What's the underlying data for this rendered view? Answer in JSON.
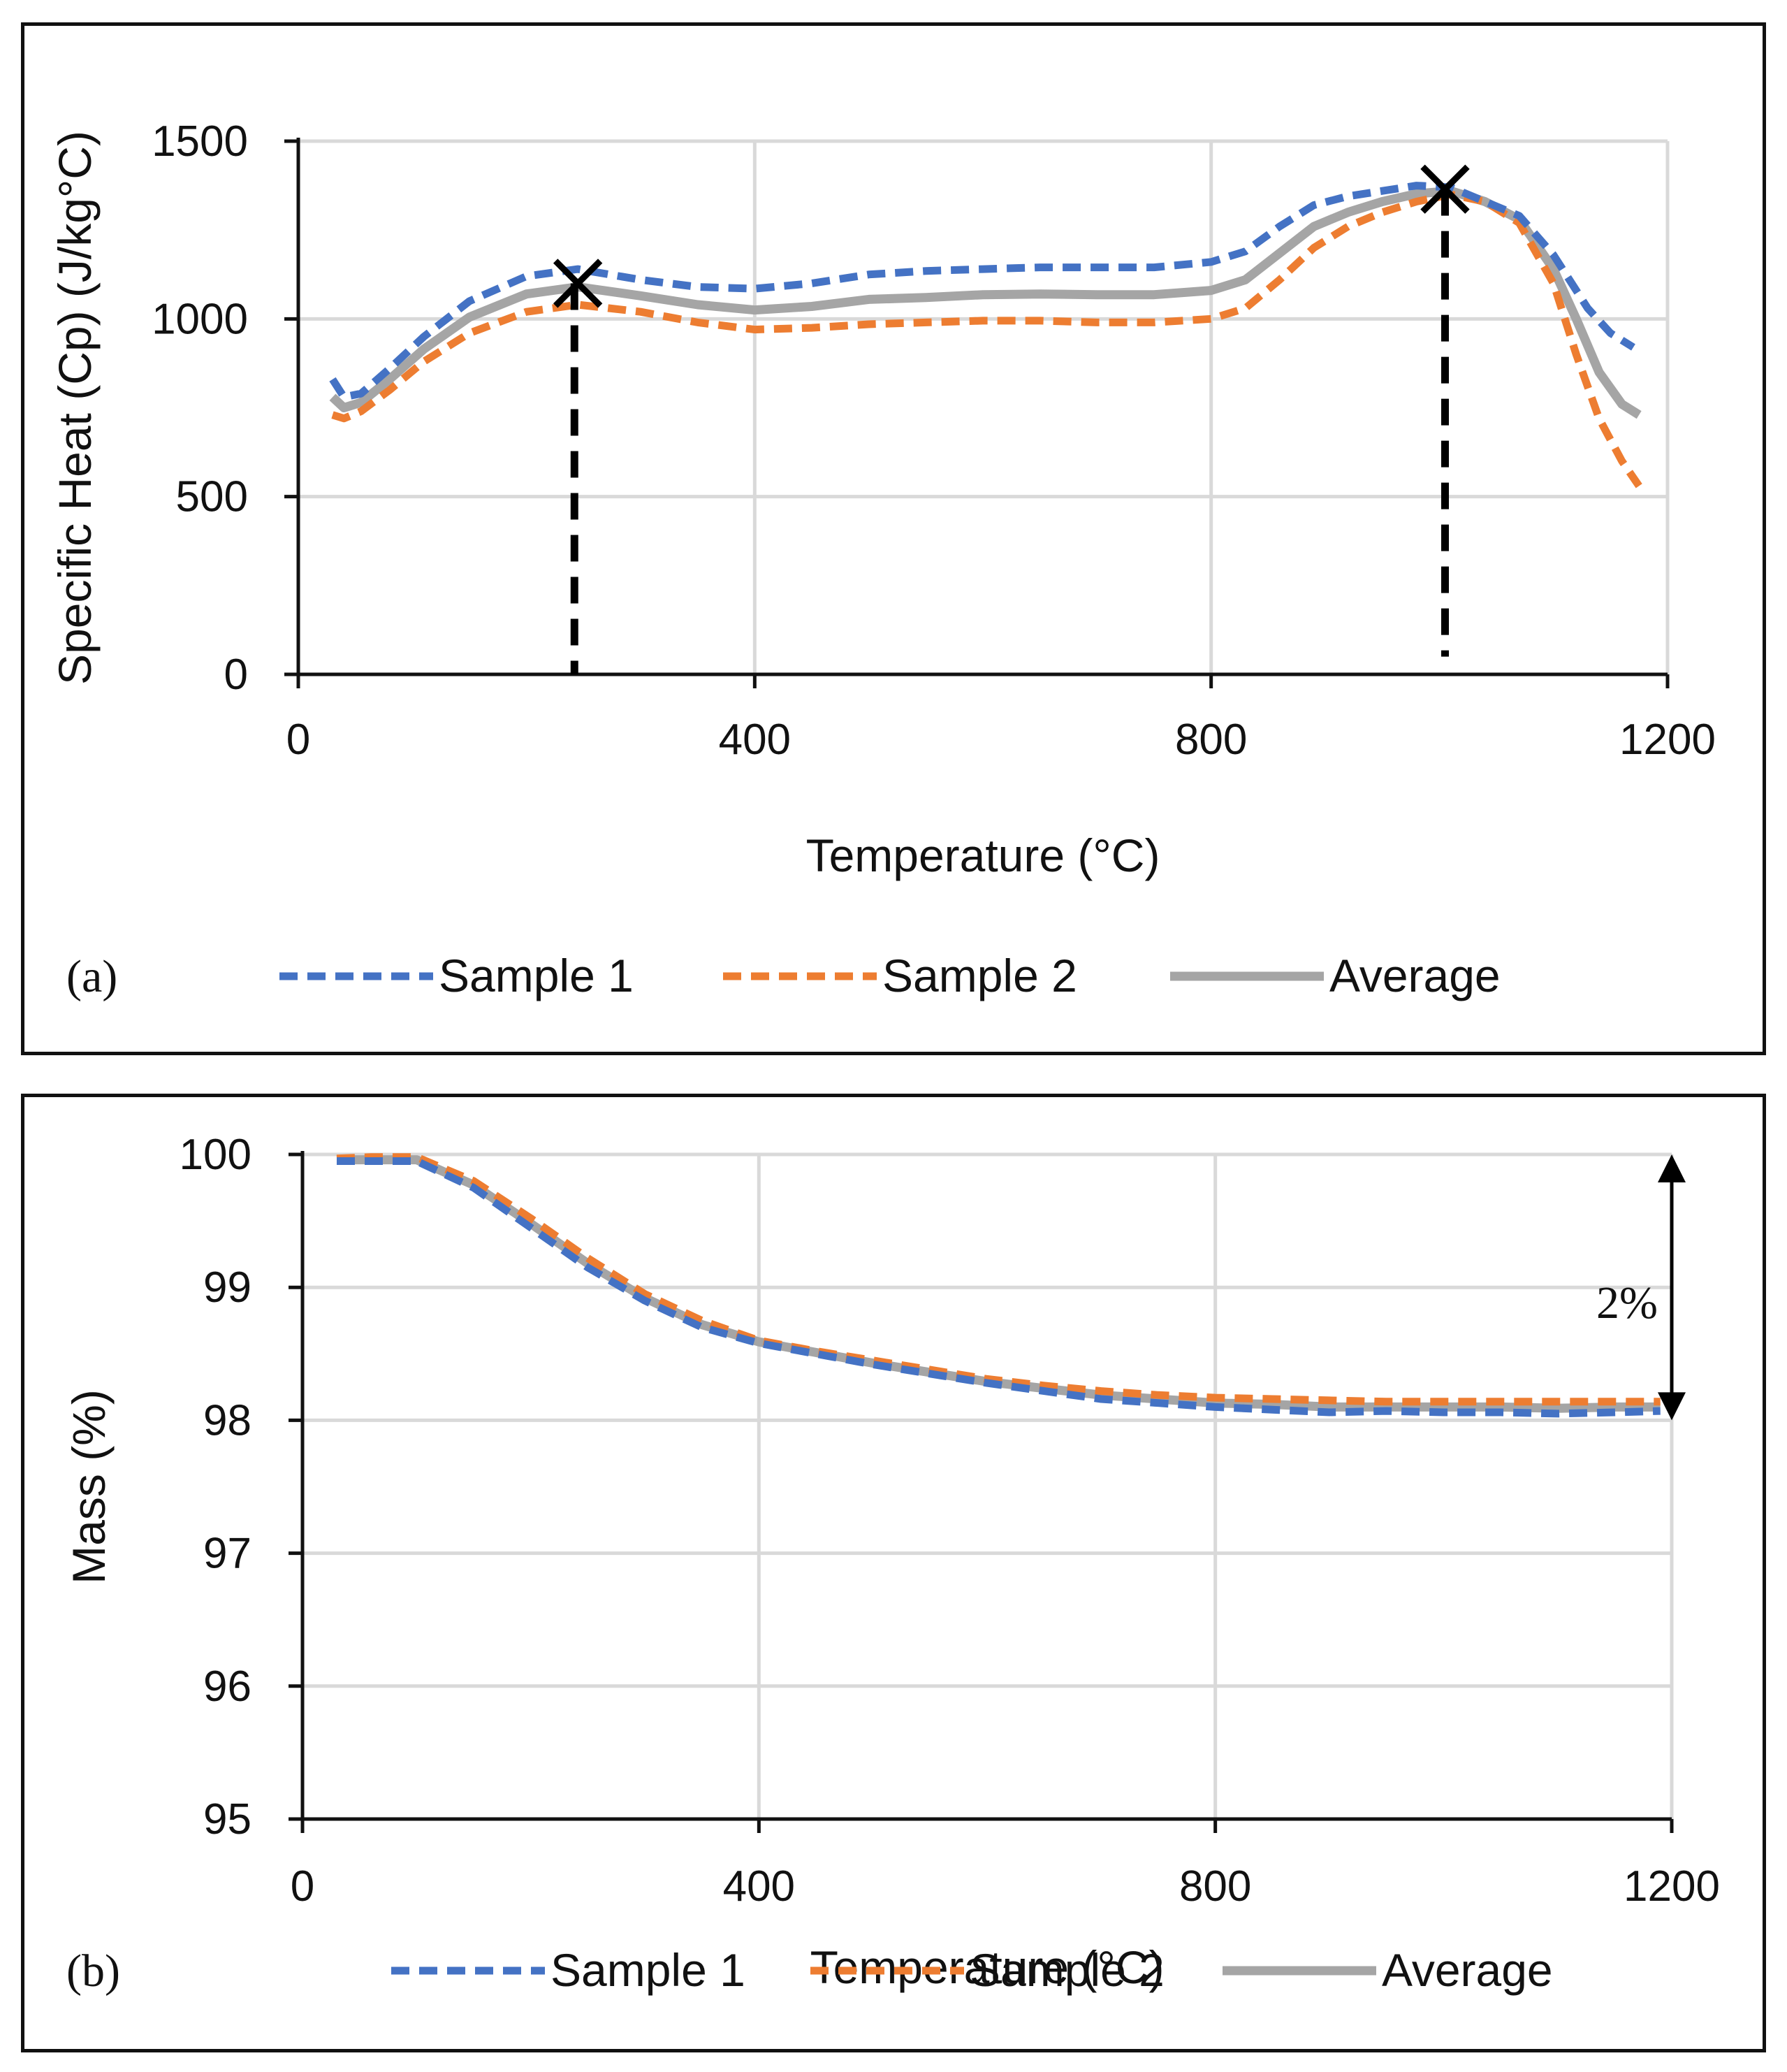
{
  "chart_data": [
    {
      "type": "line",
      "panel_label": "(a)",
      "xlabel": "Temperature (°C)",
      "ylabel": "Specific Heat (Cp) (J/kg°C)",
      "xlim": [
        0,
        1200
      ],
      "ylim": [
        0,
        1500
      ],
      "xticks": [
        0,
        400,
        800,
        1200
      ],
      "yticks": [
        0,
        500,
        1000,
        1500
      ],
      "grid": true,
      "legend_position": "bottom",
      "colors": {
        "sample1": "#4472c4",
        "sample2": "#ed7d31",
        "average": "#a5a5a5",
        "marker": "#000000"
      },
      "series": [
        {
          "name": "Sample 1",
          "style": "dashed",
          "color": "#4472c4",
          "x": [
            30,
            40,
            55,
            80,
            110,
            150,
            200,
            245,
            300,
            350,
            400,
            450,
            500,
            550,
            600,
            650,
            700,
            750,
            800,
            830,
            860,
            890,
            920,
            950,
            980,
            1010,
            1040,
            1070,
            1100,
            1130,
            1150,
            1170
          ],
          "y": [
            830,
            780,
            790,
            860,
            950,
            1050,
            1120,
            1140,
            1110,
            1090,
            1085,
            1100,
            1125,
            1135,
            1140,
            1145,
            1145,
            1145,
            1160,
            1190,
            1260,
            1320,
            1345,
            1360,
            1375,
            1370,
            1330,
            1290,
            1180,
            1030,
            960,
            920
          ]
        },
        {
          "name": "Sample 2",
          "style": "dashed",
          "color": "#ed7d31",
          "x": [
            30,
            40,
            55,
            80,
            110,
            150,
            200,
            245,
            300,
            350,
            400,
            450,
            500,
            550,
            600,
            650,
            700,
            750,
            800,
            830,
            860,
            890,
            920,
            950,
            980,
            1010,
            1040,
            1070,
            1100,
            1120,
            1140,
            1160,
            1175
          ],
          "y": [
            730,
            720,
            740,
            800,
            880,
            960,
            1020,
            1040,
            1020,
            990,
            970,
            975,
            985,
            990,
            995,
            995,
            990,
            990,
            1000,
            1030,
            1110,
            1200,
            1260,
            1300,
            1330,
            1350,
            1330,
            1270,
            1100,
            900,
            720,
            600,
            530
          ]
        },
        {
          "name": "Average",
          "style": "solid",
          "color": "#a5a5a5",
          "x": [
            30,
            40,
            55,
            80,
            110,
            150,
            200,
            245,
            300,
            350,
            400,
            450,
            500,
            550,
            600,
            650,
            700,
            750,
            800,
            830,
            860,
            890,
            920,
            950,
            980,
            1010,
            1040,
            1070,
            1100,
            1120,
            1140,
            1160,
            1175
          ],
          "y": [
            780,
            750,
            765,
            830,
            915,
            1005,
            1070,
            1090,
            1065,
            1040,
            1025,
            1035,
            1055,
            1060,
            1068,
            1070,
            1068,
            1068,
            1080,
            1110,
            1185,
            1260,
            1300,
            1330,
            1352,
            1360,
            1330,
            1280,
            1140,
            1000,
            850,
            760,
            730
          ]
        }
      ],
      "annotations": [
        {
          "type": "x-marker",
          "x": 245,
          "y": 1100
        },
        {
          "type": "x-marker",
          "x": 1005,
          "y": 1365
        },
        {
          "type": "vertical-dashed",
          "x": 242,
          "from": 0,
          "to": 1100
        },
        {
          "type": "vertical-dashed",
          "x": 1005,
          "from": 50,
          "to": 1365
        }
      ]
    },
    {
      "type": "line",
      "panel_label": "(b)",
      "xlabel": "Temperature (°C)",
      "ylabel": "Mass (%)",
      "xlim": [
        0,
        1200
      ],
      "ylim": [
        95,
        100
      ],
      "xticks": [
        0,
        400,
        800,
        1200
      ],
      "yticks": [
        95,
        96,
        97,
        98,
        99,
        100
      ],
      "grid": true,
      "legend_position": "bottom",
      "colors": {
        "sample1": "#4472c4",
        "sample2": "#ed7d31",
        "average": "#a5a5a5",
        "marker": "#000000"
      },
      "series": [
        {
          "name": "Sample 1",
          "style": "dashed",
          "color": "#4472c4",
          "x": [
            30,
            60,
            100,
            150,
            200,
            250,
            300,
            350,
            400,
            450,
            500,
            550,
            600,
            650,
            700,
            750,
            800,
            850,
            900,
            950,
            1000,
            1050,
            1100,
            1150,
            1190
          ],
          "y": [
            99.95,
            99.95,
            99.95,
            99.75,
            99.45,
            99.15,
            98.9,
            98.7,
            98.58,
            98.5,
            98.42,
            98.35,
            98.28,
            98.22,
            98.16,
            98.13,
            98.1,
            98.08,
            98.06,
            98.07,
            98.06,
            98.06,
            98.05,
            98.06,
            98.07
          ]
        },
        {
          "name": "Sample 2",
          "style": "dashed",
          "color": "#ed7d31",
          "x": [
            30,
            60,
            100,
            150,
            200,
            250,
            300,
            350,
            400,
            450,
            500,
            550,
            600,
            650,
            700,
            750,
            800,
            850,
            900,
            950,
            1000,
            1050,
            1100,
            1150,
            1190
          ],
          "y": [
            99.97,
            99.98,
            99.98,
            99.8,
            99.52,
            99.22,
            98.95,
            98.75,
            98.6,
            98.52,
            98.45,
            98.38,
            98.31,
            98.26,
            98.22,
            98.19,
            98.17,
            98.16,
            98.15,
            98.14,
            98.14,
            98.14,
            98.14,
            98.14,
            98.14
          ]
        },
        {
          "name": "Average",
          "style": "solid",
          "color": "#a5a5a5",
          "x": [
            30,
            60,
            100,
            150,
            200,
            250,
            300,
            350,
            400,
            450,
            500,
            550,
            600,
            650,
            700,
            750,
            800,
            850,
            900,
            950,
            1000,
            1050,
            1100,
            1150,
            1190
          ],
          "y": [
            99.96,
            99.96,
            99.96,
            99.77,
            99.48,
            99.18,
            98.92,
            98.72,
            98.59,
            98.51,
            98.43,
            98.36,
            98.29,
            98.24,
            98.19,
            98.16,
            98.13,
            98.12,
            98.1,
            98.1,
            98.1,
            98.1,
            98.09,
            98.1,
            98.1
          ]
        }
      ],
      "annotations": [
        {
          "type": "double-arrow",
          "x": 1200,
          "from": 100,
          "to": 98,
          "label": "2%"
        }
      ]
    }
  ]
}
